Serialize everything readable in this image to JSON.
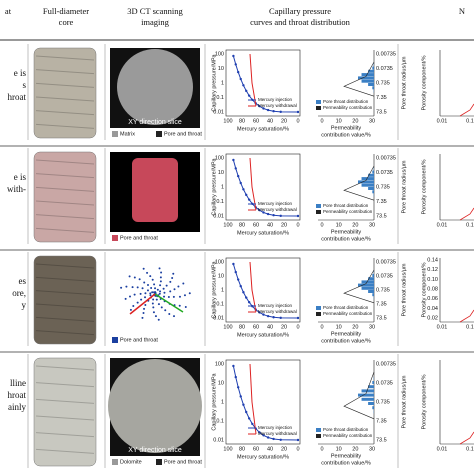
{
  "header": {
    "columns": [
      [
        "at"
      ],
      [
        "Full-diameter",
        "core"
      ],
      [
        "3D CT scanning",
        "imaging"
      ],
      [
        "Capillary pressure",
        "curves and throat distribution"
      ],
      [
        "N"
      ]
    ]
  },
  "axes": {
    "cap_y_label": "Capillary pressure/MPa",
    "cap_yticks": [
      "100",
      "10",
      "1",
      "0.1",
      "0.01"
    ],
    "cap_x_label": "Mercury saturation/%",
    "cap_xticks": [
      "100",
      "80",
      "60",
      "40",
      "20",
      "0"
    ],
    "dist_x_label": [
      "Permeability",
      "contribution value/%"
    ],
    "dist_xticks": [
      "0",
      "10",
      "20",
      "30"
    ],
    "radius_label": "Pore throat radius/μm",
    "radius_ticks": [
      "0.00735",
      "0.0735",
      "0.735",
      "7.35",
      "73.5"
    ],
    "porosity_label": "Porosity component/%",
    "porosity_xticks": [
      "0.01",
      "0.1"
    ]
  },
  "rows": [
    {
      "desc": [
        "e is",
        "s",
        "hroat"
      ],
      "ct_title": "XY direction slice",
      "ct_legend": [
        "Matrix",
        "Pore and throat"
      ],
      "cap_legend": [
        "Mercury injection",
        "Mercury withdrawal"
      ],
      "dist_legend": [
        "Pore throat distribution",
        "Permeability contribution"
      ]
    },
    {
      "desc": [
        "e is",
        "with-"
      ],
      "ct_legend": [
        "Pore and throat"
      ],
      "cap_legend": [
        "Mercury injection",
        "Mercury withdrawal"
      ],
      "dist_legend": [
        "Pore throat distribution",
        "Permeability contribution"
      ]
    },
    {
      "desc": [
        "es",
        "ore,",
        "y"
      ],
      "ct_legend": [
        "Pore and throat"
      ],
      "cap_legend": [
        "Mercury injection",
        "Mercury withdrawal"
      ],
      "dist_legend": [
        "Pore throat distribution",
        "Permeability contribution"
      ],
      "porosity_yticks": [
        "0.14",
        "0.12",
        "0.10",
        "0.08",
        "0.06",
        "0.04",
        "0.02"
      ]
    },
    {
      "desc": [
        "lline",
        "hroat",
        "ainly"
      ],
      "ct_title": "XY direction slice",
      "ct_legend": [
        "Dolomite",
        "Pore and throat"
      ],
      "cap_legend": [
        "Mercury injection",
        "Mercury withdrawal"
      ],
      "dist_legend": [
        "Pore throat distribution",
        "Permeability contribution"
      ]
    }
  ]
}
